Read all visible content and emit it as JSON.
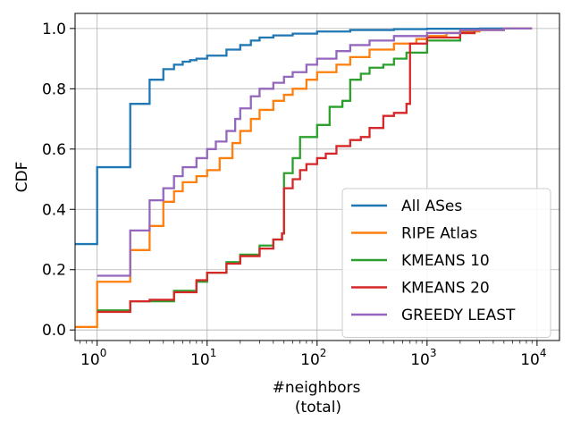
{
  "chart_data": {
    "type": "line",
    "xlabel": "#neighbors",
    "xlabel2": "(total)",
    "ylabel": "CDF",
    "xscale": "log",
    "xlim": [
      0.63,
      16000
    ],
    "ylim": [
      -0.035,
      1.05
    ],
    "grid": true,
    "legend_position": "lower-right",
    "x_ticks": [
      {
        "value": 1,
        "base": "10",
        "exp": "0"
      },
      {
        "value": 10,
        "base": "10",
        "exp": "1"
      },
      {
        "value": 100,
        "base": "10",
        "exp": "2"
      },
      {
        "value": 1000,
        "base": "10",
        "exp": "3"
      },
      {
        "value": 10000,
        "base": "10",
        "exp": "4"
      }
    ],
    "y_ticks": [
      {
        "value": 0.0,
        "label": "0.0"
      },
      {
        "value": 0.2,
        "label": "0.2"
      },
      {
        "value": 0.4,
        "label": "0.4"
      },
      {
        "value": 0.6,
        "label": "0.6"
      },
      {
        "value": 0.8,
        "label": "0.8"
      },
      {
        "value": 1.0,
        "label": "1.0"
      }
    ],
    "series": [
      {
        "name": "All ASes",
        "color": "#1f77b4",
        "x": [
          0.63,
          1,
          2,
          3,
          4,
          5,
          6,
          7,
          8,
          10,
          15,
          20,
          25,
          30,
          40,
          60,
          100,
          200,
          500,
          1000,
          3000,
          9000
        ],
        "y": [
          0.285,
          0.54,
          0.75,
          0.83,
          0.865,
          0.88,
          0.89,
          0.895,
          0.9,
          0.91,
          0.93,
          0.945,
          0.96,
          0.97,
          0.977,
          0.983,
          0.99,
          0.995,
          0.998,
          0.999,
          1.0,
          1.0
        ]
      },
      {
        "name": "RIPE Atlas",
        "color": "#ff7f0e",
        "x": [
          0.63,
          1,
          2,
          3,
          4,
          5,
          6,
          8,
          10,
          13,
          17,
          20,
          25,
          30,
          40,
          50,
          60,
          80,
          100,
          150,
          200,
          300,
          500,
          800,
          1000,
          1500,
          2000,
          3000,
          5000,
          9000
        ],
        "y": [
          0.01,
          0.16,
          0.265,
          0.345,
          0.425,
          0.46,
          0.49,
          0.51,
          0.53,
          0.57,
          0.62,
          0.66,
          0.7,
          0.73,
          0.76,
          0.78,
          0.8,
          0.83,
          0.855,
          0.88,
          0.905,
          0.93,
          0.95,
          0.965,
          0.975,
          0.985,
          0.99,
          0.995,
          1.0,
          1.0
        ]
      },
      {
        "name": "KMEANS 10",
        "color": "#2ca02c",
        "x": [
          1,
          2,
          5,
          8,
          10,
          15,
          20,
          30,
          40,
          48,
          50,
          60,
          70,
          100,
          130,
          170,
          200,
          250,
          300,
          400,
          500,
          650,
          1000,
          2000,
          2700
        ],
        "y": [
          0.065,
          0.095,
          0.13,
          0.16,
          0.19,
          0.225,
          0.25,
          0.28,
          0.3,
          0.32,
          0.52,
          0.57,
          0.64,
          0.68,
          0.74,
          0.76,
          0.83,
          0.85,
          0.87,
          0.88,
          0.9,
          0.92,
          0.96,
          0.985,
          0.99
        ]
      },
      {
        "name": "KMEANS 20",
        "color": "#d62728",
        "x": [
          1,
          2,
          3,
          5,
          8,
          10,
          15,
          20,
          30,
          40,
          48,
          50,
          60,
          70,
          80,
          100,
          120,
          150,
          200,
          250,
          300,
          400,
          500,
          650,
          700,
          1000,
          2000,
          2700
        ],
        "y": [
          0.06,
          0.095,
          0.1,
          0.125,
          0.165,
          0.19,
          0.22,
          0.245,
          0.27,
          0.3,
          0.32,
          0.47,
          0.5,
          0.53,
          0.55,
          0.57,
          0.585,
          0.61,
          0.63,
          0.64,
          0.67,
          0.71,
          0.72,
          0.75,
          0.95,
          0.97,
          0.985,
          0.99
        ]
      },
      {
        "name": "GREEDY LEAST",
        "color": "#9467bd",
        "x": [
          1,
          2,
          3,
          4,
          5,
          6,
          8,
          10,
          12,
          15,
          18,
          20,
          25,
          30,
          40,
          50,
          60,
          80,
          100,
          150,
          200,
          300,
          500,
          1000,
          2000,
          5000,
          9000
        ],
        "y": [
          0.18,
          0.33,
          0.43,
          0.47,
          0.51,
          0.54,
          0.57,
          0.6,
          0.625,
          0.66,
          0.7,
          0.735,
          0.775,
          0.8,
          0.82,
          0.84,
          0.855,
          0.88,
          0.9,
          0.925,
          0.945,
          0.96,
          0.975,
          0.985,
          0.995,
          1.0,
          1.0
        ]
      }
    ]
  }
}
